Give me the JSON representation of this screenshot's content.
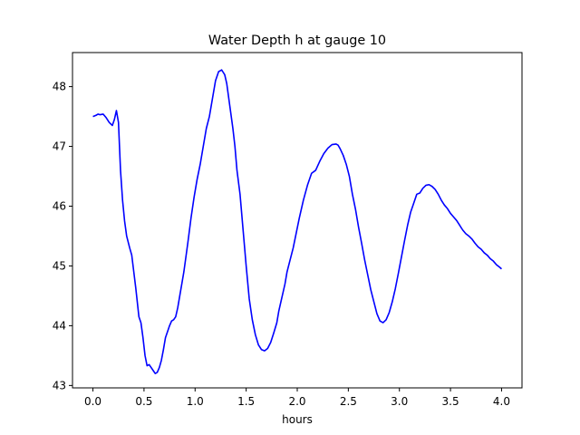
{
  "chart_data": {
    "type": "line",
    "title": "Water Depth h at gauge 10",
    "xlabel": "hours",
    "ylabel": "",
    "xlim": [
      -0.2,
      4.2
    ],
    "ylim": [
      42.96,
      48.57
    ],
    "xticks": [
      0.0,
      0.5,
      1.0,
      1.5,
      2.0,
      2.5,
      3.0,
      3.5,
      4.0
    ],
    "xtick_labels": [
      "0.0",
      "0.5",
      "1.0",
      "1.5",
      "2.0",
      "2.5",
      "3.0",
      "3.5",
      "4.0"
    ],
    "yticks": [
      43,
      44,
      45,
      46,
      47,
      48
    ],
    "ytick_labels": [
      "43",
      "44",
      "45",
      "46",
      "47",
      "48"
    ],
    "grid": false,
    "series": [
      {
        "name": "",
        "color": "#0000ff",
        "x": [
          0.0,
          0.03,
          0.05,
          0.07,
          0.1,
          0.13,
          0.16,
          0.19,
          0.21,
          0.23,
          0.25,
          0.27,
          0.29,
          0.31,
          0.33,
          0.36,
          0.38,
          0.4,
          0.42,
          0.45,
          0.47,
          0.49,
          0.51,
          0.53,
          0.55,
          0.57,
          0.59,
          0.61,
          0.63,
          0.65,
          0.67,
          0.69,
          0.71,
          0.73,
          0.75,
          0.77,
          0.79,
          0.81,
          0.83,
          0.85,
          0.87,
          0.89,
          0.91,
          0.93,
          0.96,
          0.99,
          1.02,
          1.05,
          1.08,
          1.11,
          1.14,
          1.17,
          1.2,
          1.23,
          1.26,
          1.29,
          1.31,
          1.33,
          1.35,
          1.37,
          1.39,
          1.41,
          1.44,
          1.47,
          1.5,
          1.53,
          1.56,
          1.59,
          1.62,
          1.65,
          1.68,
          1.71,
          1.74,
          1.77,
          1.8,
          1.82,
          1.84,
          1.86,
          1.88,
          1.9,
          1.93,
          1.96,
          1.99,
          2.02,
          2.06,
          2.1,
          2.14,
          2.18,
          2.22,
          2.26,
          2.3,
          2.34,
          2.38,
          2.4,
          2.42,
          2.45,
          2.48,
          2.51,
          2.54,
          2.57,
          2.6,
          2.63,
          2.66,
          2.69,
          2.72,
          2.75,
          2.78,
          2.81,
          2.84,
          2.87,
          2.9,
          2.93,
          2.96,
          2.99,
          3.02,
          3.05,
          3.08,
          3.11,
          3.14,
          3.17,
          3.2,
          3.23,
          3.26,
          3.29,
          3.32,
          3.35,
          3.38,
          3.41,
          3.44,
          3.47,
          3.5,
          3.53,
          3.56,
          3.59,
          3.62,
          3.65,
          3.68,
          3.71,
          3.74,
          3.77,
          3.8,
          3.83,
          3.86,
          3.89,
          3.92,
          3.95,
          3.98,
          4.0
        ],
        "y": [
          47.5,
          47.52,
          47.54,
          47.53,
          47.54,
          47.48,
          47.4,
          47.35,
          47.45,
          47.6,
          47.4,
          46.6,
          46.1,
          45.75,
          45.5,
          45.3,
          45.18,
          44.9,
          44.62,
          44.15,
          44.05,
          43.8,
          43.5,
          43.33,
          43.35,
          43.3,
          43.25,
          43.2,
          43.22,
          43.3,
          43.42,
          43.6,
          43.8,
          43.9,
          44.0,
          44.08,
          44.1,
          44.15,
          44.3,
          44.5,
          44.7,
          44.9,
          45.15,
          45.4,
          45.8,
          46.15,
          46.45,
          46.7,
          47.0,
          47.3,
          47.5,
          47.8,
          48.1,
          48.25,
          48.28,
          48.2,
          48.05,
          47.8,
          47.55,
          47.3,
          47.0,
          46.6,
          46.2,
          45.6,
          45.0,
          44.45,
          44.1,
          43.85,
          43.68,
          43.6,
          43.58,
          43.62,
          43.72,
          43.88,
          44.05,
          44.25,
          44.4,
          44.55,
          44.7,
          44.9,
          45.1,
          45.3,
          45.55,
          45.8,
          46.1,
          46.35,
          46.55,
          46.6,
          46.75,
          46.88,
          46.97,
          47.03,
          47.04,
          47.02,
          46.96,
          46.85,
          46.7,
          46.5,
          46.2,
          45.95,
          45.65,
          45.38,
          45.1,
          44.85,
          44.6,
          44.4,
          44.2,
          44.08,
          44.05,
          44.1,
          44.22,
          44.4,
          44.62,
          44.88,
          45.15,
          45.42,
          45.68,
          45.9,
          46.05,
          46.2,
          46.22,
          46.3,
          46.35,
          46.36,
          46.33,
          46.28,
          46.2,
          46.1,
          46.02,
          45.96,
          45.88,
          45.82,
          45.76,
          45.68,
          45.6,
          45.54,
          45.5,
          45.45,
          45.38,
          45.32,
          45.28,
          45.22,
          45.18,
          45.12,
          45.08,
          45.02,
          44.98,
          44.95
        ]
      }
    ]
  }
}
